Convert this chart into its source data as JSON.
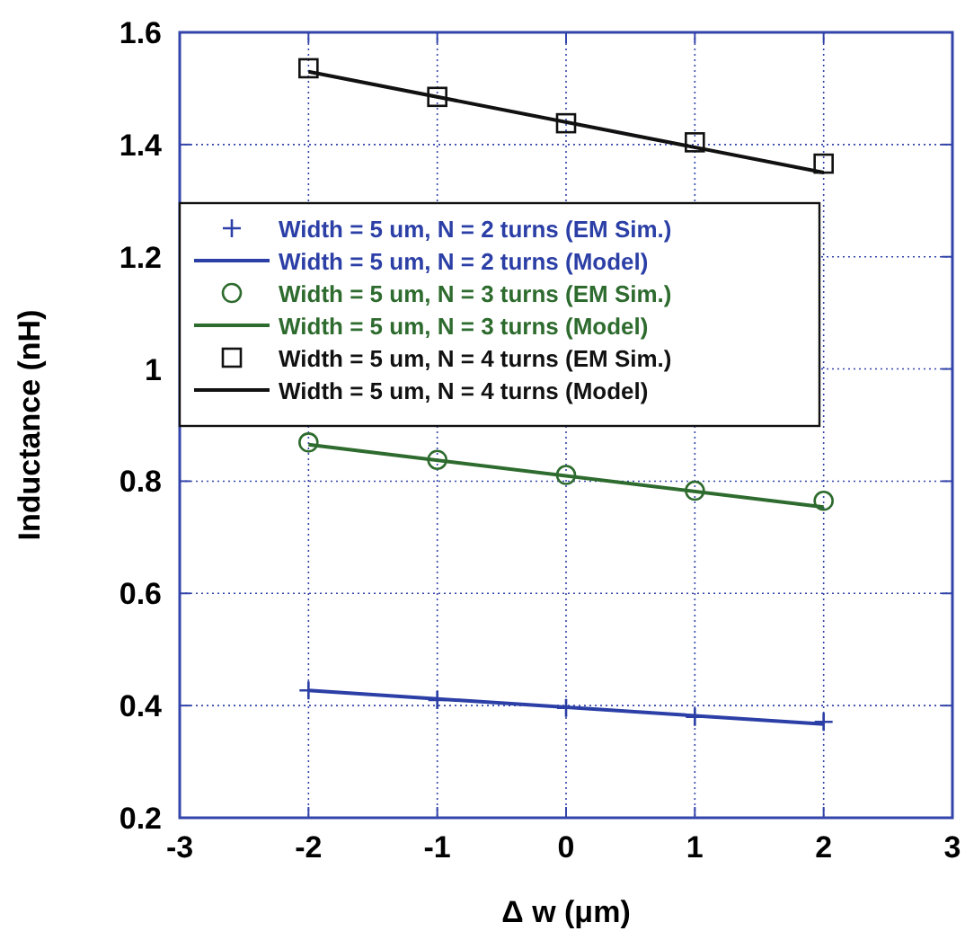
{
  "chart_data": {
    "type": "line",
    "xlabel": "Δ w (μm)",
    "ylabel": "Inductance (nH)",
    "xlim": [
      -3,
      3
    ],
    "xticks": [
      -3,
      -2,
      -1,
      0,
      1,
      2,
      3
    ],
    "ylim": [
      0.2,
      1.6
    ],
    "yticks": [
      0.2,
      0.4,
      0.6,
      0.8,
      1,
      1.2,
      1.4,
      1.6
    ],
    "grid": true,
    "legend": "top left",
    "series": [
      {
        "name": "Width = 5 um, N = 2 turns (EM Sim.)",
        "type": "scatter",
        "marker": "cross",
        "color": "#2b3fa6",
        "x": [
          -2,
          -1,
          0,
          1,
          2
        ],
        "values": [
          0.427,
          0.41,
          0.396,
          0.38,
          0.371
        ]
      },
      {
        "name": "Width = 5 um, N = 2 turns (Model)",
        "marker": "none",
        "color": "#2b3fa6",
        "x": [
          -2,
          2
        ],
        "values": [
          0.427,
          0.367
        ]
      },
      {
        "name": "Width = 5 um, N = 3 turns (EM Sim.)",
        "type": "scatter",
        "marker": "circle",
        "color": "#2e6b2e",
        "x": [
          -2,
          -1,
          0,
          1,
          2
        ],
        "values": [
          0.869,
          0.838,
          0.811,
          0.783,
          0.765
        ]
      },
      {
        "name": "Width = 5 um, N = 3 turns (Model)",
        "marker": "none",
        "color": "#2e6b2e",
        "x": [
          -2,
          2
        ],
        "values": [
          0.865,
          0.754
        ]
      },
      {
        "name": "Width = 5 um, N = 4 turns (EM Sim.)",
        "type": "scatter",
        "marker": "square",
        "color": "#111111",
        "x": [
          -2,
          -1,
          0,
          1,
          2
        ],
        "values": [
          1.536,
          1.485,
          1.438,
          1.404,
          1.366
        ]
      },
      {
        "name": "Width = 5 um, N = 4 turns (Model)",
        "marker": "none",
        "color": "#111111",
        "x": [
          -2,
          2
        ],
        "values": [
          1.53,
          1.35
        ]
      }
    ]
  }
}
